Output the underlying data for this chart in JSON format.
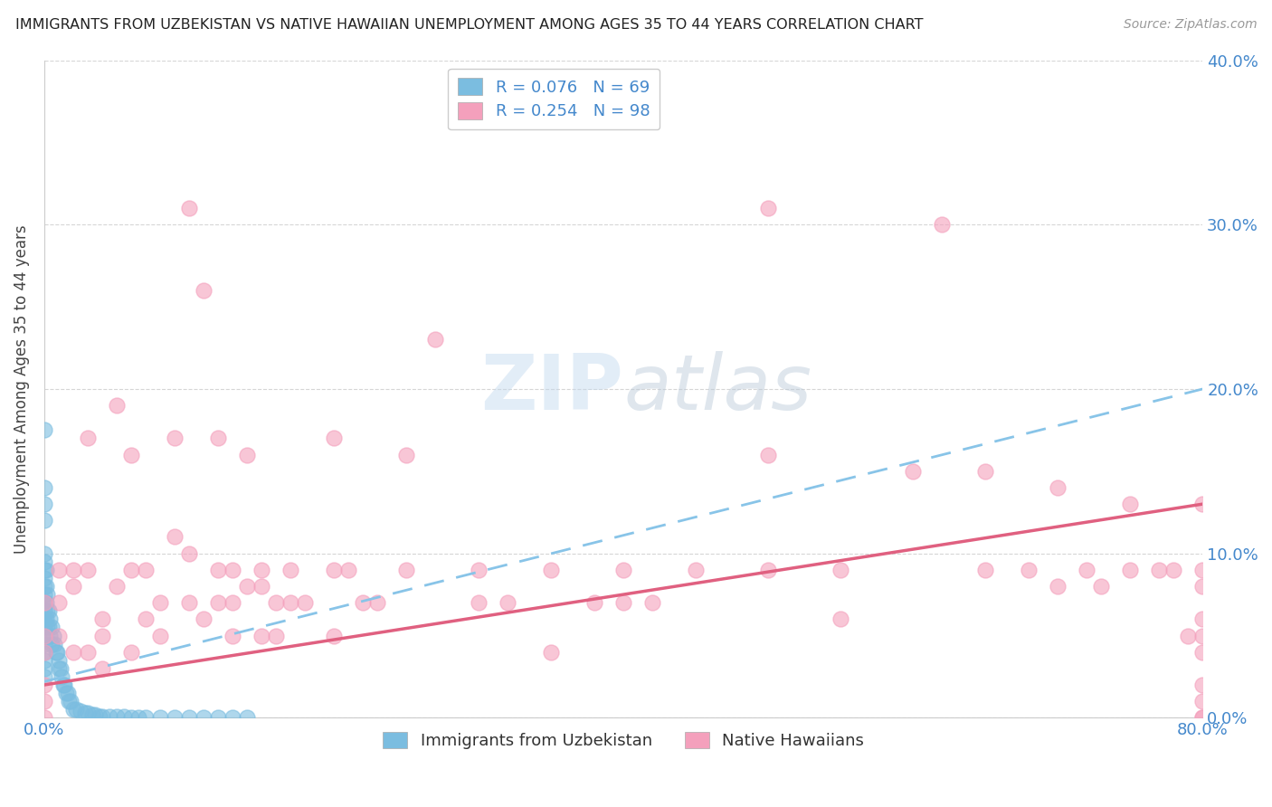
{
  "title": "IMMIGRANTS FROM UZBEKISTAN VS NATIVE HAWAIIAN UNEMPLOYMENT AMONG AGES 35 TO 44 YEARS CORRELATION CHART",
  "source": "Source: ZipAtlas.com",
  "ylabel": "Unemployment Among Ages 35 to 44 years",
  "R_blue": 0.076,
  "N_blue": 69,
  "R_pink": 0.254,
  "N_pink": 98,
  "color_blue": "#7bbde0",
  "color_pink": "#f4a0bc",
  "color_blue_line": "#88c4e8",
  "color_pink_line": "#e06080",
  "color_title": "#222222",
  "color_axis_blue": "#4488cc",
  "background_color": "#ffffff",
  "xlim": [
    0.0,
    0.8
  ],
  "ylim": [
    0.0,
    0.4
  ],
  "blue_line_start_y": 0.022,
  "blue_line_end_y": 0.2,
  "pink_line_start_y": 0.02,
  "pink_line_end_y": 0.13,
  "blue_x": [
    0.0,
    0.0,
    0.0,
    0.0,
    0.0,
    0.0,
    0.0,
    0.0,
    0.0,
    0.0,
    0.0,
    0.0,
    0.0,
    0.0,
    0.0,
    0.0,
    0.0,
    0.0,
    0.0,
    0.0,
    0.001,
    0.001,
    0.001,
    0.001,
    0.002,
    0.002,
    0.002,
    0.003,
    0.003,
    0.004,
    0.004,
    0.005,
    0.005,
    0.006,
    0.007,
    0.008,
    0.009,
    0.01,
    0.01,
    0.011,
    0.012,
    0.013,
    0.014,
    0.015,
    0.016,
    0.017,
    0.018,
    0.02,
    0.022,
    0.025,
    0.028,
    0.03,
    0.033,
    0.035,
    0.038,
    0.04,
    0.045,
    0.05,
    0.055,
    0.06,
    0.065,
    0.07,
    0.08,
    0.09,
    0.1,
    0.11,
    0.12,
    0.13,
    0.14
  ],
  "blue_y": [
    0.175,
    0.14,
    0.13,
    0.12,
    0.1,
    0.095,
    0.09,
    0.085,
    0.08,
    0.075,
    0.07,
    0.065,
    0.06,
    0.055,
    0.05,
    0.045,
    0.04,
    0.035,
    0.03,
    0.025,
    0.09,
    0.08,
    0.07,
    0.06,
    0.075,
    0.065,
    0.055,
    0.065,
    0.055,
    0.06,
    0.05,
    0.055,
    0.045,
    0.05,
    0.045,
    0.04,
    0.04,
    0.035,
    0.03,
    0.03,
    0.025,
    0.02,
    0.02,
    0.015,
    0.015,
    0.01,
    0.01,
    0.005,
    0.005,
    0.004,
    0.003,
    0.003,
    0.002,
    0.002,
    0.001,
    0.001,
    0.001,
    0.001,
    0.001,
    0.0,
    0.0,
    0.0,
    0.0,
    0.0,
    0.0,
    0.0,
    0.0,
    0.0,
    0.0
  ],
  "pink_x": [
    0.0,
    0.0,
    0.0,
    0.0,
    0.0,
    0.0,
    0.01,
    0.01,
    0.01,
    0.02,
    0.02,
    0.02,
    0.03,
    0.03,
    0.03,
    0.04,
    0.04,
    0.04,
    0.05,
    0.05,
    0.06,
    0.06,
    0.06,
    0.07,
    0.07,
    0.08,
    0.08,
    0.09,
    0.09,
    0.1,
    0.1,
    0.1,
    0.11,
    0.11,
    0.12,
    0.12,
    0.12,
    0.13,
    0.13,
    0.13,
    0.14,
    0.14,
    0.15,
    0.15,
    0.15,
    0.16,
    0.16,
    0.17,
    0.17,
    0.18,
    0.2,
    0.2,
    0.2,
    0.21,
    0.22,
    0.23,
    0.25,
    0.25,
    0.27,
    0.3,
    0.3,
    0.32,
    0.35,
    0.35,
    0.38,
    0.4,
    0.4,
    0.42,
    0.45,
    0.5,
    0.5,
    0.5,
    0.55,
    0.55,
    0.6,
    0.62,
    0.65,
    0.65,
    0.68,
    0.7,
    0.7,
    0.72,
    0.73,
    0.75,
    0.75,
    0.77,
    0.78,
    0.79,
    0.8,
    0.8,
    0.8,
    0.8,
    0.8,
    0.8,
    0.8,
    0.8,
    0.8,
    0.8
  ],
  "pink_y": [
    0.07,
    0.05,
    0.04,
    0.02,
    0.01,
    0.0,
    0.09,
    0.07,
    0.05,
    0.09,
    0.08,
    0.04,
    0.17,
    0.09,
    0.04,
    0.06,
    0.05,
    0.03,
    0.19,
    0.08,
    0.16,
    0.09,
    0.04,
    0.09,
    0.06,
    0.07,
    0.05,
    0.17,
    0.11,
    0.31,
    0.1,
    0.07,
    0.26,
    0.06,
    0.17,
    0.09,
    0.07,
    0.09,
    0.07,
    0.05,
    0.16,
    0.08,
    0.09,
    0.08,
    0.05,
    0.07,
    0.05,
    0.09,
    0.07,
    0.07,
    0.17,
    0.09,
    0.05,
    0.09,
    0.07,
    0.07,
    0.16,
    0.09,
    0.23,
    0.09,
    0.07,
    0.07,
    0.09,
    0.04,
    0.07,
    0.09,
    0.07,
    0.07,
    0.09,
    0.31,
    0.16,
    0.09,
    0.09,
    0.06,
    0.15,
    0.3,
    0.15,
    0.09,
    0.09,
    0.14,
    0.08,
    0.09,
    0.08,
    0.13,
    0.09,
    0.09,
    0.09,
    0.05,
    0.13,
    0.09,
    0.08,
    0.06,
    0.04,
    0.02,
    0.01,
    0.0,
    0.0,
    0.05
  ]
}
